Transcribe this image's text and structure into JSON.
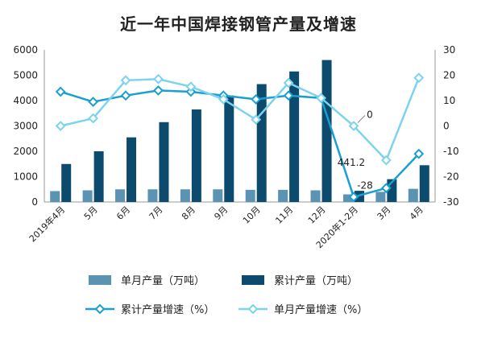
{
  "chart_data": {
    "type": "bar",
    "title": "近一年中国焊接钢管产量及增速",
    "categories": [
      "2019年4月",
      "5月",
      "6月",
      "7月",
      "8月",
      "9月",
      "10月",
      "11月",
      "12月",
      "2020年1-2月",
      "3月",
      "4月"
    ],
    "series": [
      {
        "name": "单月产量（万吨）",
        "type": "bar",
        "axis": "left",
        "color": "#5b93b2",
        "values": [
          430,
          460,
          500,
          500,
          500,
          500,
          480,
          480,
          460,
          300,
          400,
          520
        ]
      },
      {
        "name": "累计产量（万吨）",
        "type": "bar",
        "axis": "left",
        "color": "#0c4a6e",
        "values": [
          1500,
          2000,
          2550,
          3150,
          3650,
          4200,
          4650,
          5150,
          5600,
          441.2,
          900,
          1450
        ]
      },
      {
        "name": "累计产量增速（%）",
        "type": "line",
        "axis": "right",
        "color": "#1a9fd0",
        "values": [
          13.5,
          9.5,
          12,
          14,
          13.5,
          12,
          10.5,
          12,
          11,
          -28,
          -24.5,
          -11
        ]
      },
      {
        "name": "单月产量增速（%）",
        "type": "line",
        "axis": "right",
        "color": "#7dd3ee",
        "values": [
          0,
          3,
          18,
          18.5,
          15.5,
          10.5,
          2.5,
          17,
          11,
          0,
          -13.5,
          19
        ]
      }
    ],
    "data_labels": [
      {
        "series": "累计产量（万吨）",
        "category": "2020年1-2月",
        "text": "441.2"
      },
      {
        "series": "单月产量增速（%）",
        "category": "2020年1-2月",
        "text": "0"
      },
      {
        "series": "累计产量增速（%）",
        "category": "2020年1-2月",
        "text": "-28"
      }
    ],
    "yleft": {
      "min": 0,
      "max": 6000,
      "ticks": [
        0,
        1000,
        2000,
        3000,
        4000,
        5000,
        6000
      ]
    },
    "yright": {
      "min": -30,
      "max": 30,
      "ticks": [
        -30,
        -20,
        -10,
        0,
        10,
        20,
        30
      ]
    },
    "grid": false,
    "legend_position": "bottom"
  }
}
